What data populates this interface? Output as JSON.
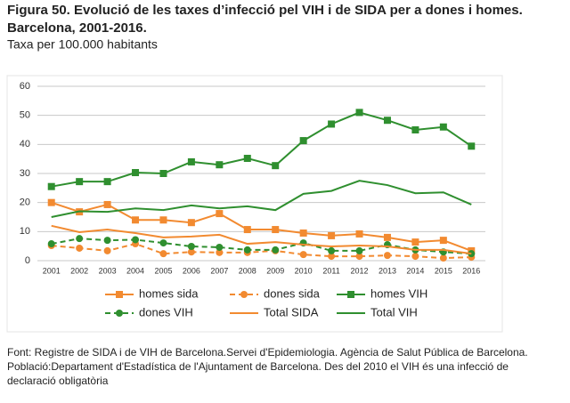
{
  "chart_data": {
    "type": "line",
    "title": [
      "Figura 50. Evolució de les taxes d’infecció pel VIH i de SIDA per a dones i homes.",
      "Barcelona, 2001-2016."
    ],
    "subtitle": "Taxa per 100.000 habitants",
    "categories": [
      "2001",
      "2002",
      "2003",
      "2004",
      "2005",
      "2006",
      "2007",
      "2008",
      "2009",
      "2010",
      "2011",
      "2012",
      "2013",
      "2014",
      "2015",
      "2016"
    ],
    "ylim": [
      0,
      60
    ],
    "yticks": [
      0,
      10,
      20,
      30,
      40,
      50,
      60
    ],
    "grid": true,
    "series": [
      {
        "name": "homes sida",
        "color": "#f28a30",
        "marker": "square",
        "dashed": false,
        "values": [
          20,
          16.8,
          19.3,
          14,
          14,
          13.1,
          16.2,
          10.7,
          10.7,
          9.5,
          8.6,
          9.2,
          8,
          6.4,
          7,
          3.4
        ]
      },
      {
        "name": "dones sida",
        "color": "#f28a30",
        "marker": "circle",
        "dashed": true,
        "values": [
          5.2,
          4.3,
          3.4,
          5.8,
          2.4,
          3,
          2.8,
          2.8,
          3.4,
          2.1,
          1.5,
          1.5,
          1.8,
          1.5,
          0.9,
          1.2
        ]
      },
      {
        "name": "homes VIH",
        "color": "#2f8f2f",
        "marker": "square",
        "dashed": false,
        "values": [
          25.5,
          27.2,
          27.2,
          30.3,
          30,
          34,
          33,
          35.2,
          32.7,
          41.3,
          47,
          51,
          48.3,
          45,
          46,
          39.4
        ]
      },
      {
        "name": "dones VIH",
        "color": "#2f8f2f",
        "marker": "circle",
        "dashed": true,
        "values": [
          5.8,
          7.6,
          7,
          7.2,
          6.1,
          4.9,
          4.6,
          3.7,
          3.7,
          6.1,
          3.4,
          3.4,
          5.5,
          3.7,
          3,
          2.4
        ]
      },
      {
        "name": "Total SIDA",
        "color": "#f28a30",
        "marker": null,
        "dashed": false,
        "values": [
          12,
          9.8,
          10.7,
          9.5,
          8,
          8.3,
          8.9,
          5.8,
          6.4,
          5.5,
          4.9,
          5.2,
          4.9,
          3.7,
          3.7,
          2.4
        ]
      },
      {
        "name": "Total VIH",
        "color": "#2f8f2f",
        "marker": null,
        "dashed": false,
        "values": [
          15,
          17,
          16.8,
          18,
          17.4,
          19,
          18,
          18.7,
          17.4,
          23,
          24,
          27.5,
          26,
          23.2,
          23.5,
          19.3
        ]
      }
    ],
    "notes": [
      "Font: Registre de SIDA i de VIH de Barcelona.Servei d'Epidemiologia. Agència de Salut Pública de Barcelona.",
      "Població:Departament d'Estadística de l'Ajuntament de Barcelona. Des del 2010 el VIH és una infecció de declaració obligatòria"
    ]
  }
}
